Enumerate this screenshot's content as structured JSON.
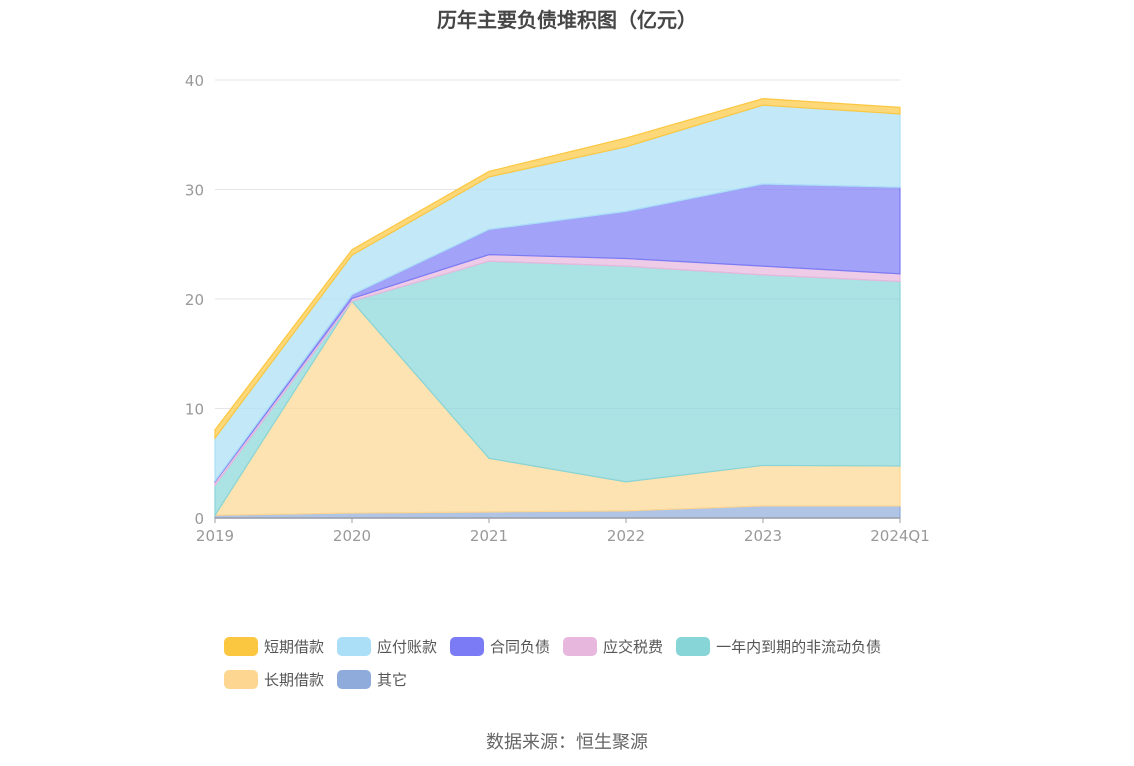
{
  "chart_data": {
    "type": "area",
    "stacked": true,
    "title": "历年主要负债堆积图（亿元）",
    "categories": [
      "2019",
      "2020",
      "2021",
      "2022",
      "2023",
      "2024Q1"
    ],
    "y_ticks": [
      "0",
      "10",
      "20",
      "30",
      "40"
    ],
    "ylim": [
      0,
      40
    ],
    "grid": true,
    "legend_position": "bottom",
    "series": [
      {
        "name": "其它",
        "color": "#8fabdb",
        "values": [
          0.25,
          0.45,
          0.55,
          0.65,
          1.1,
          1.1
        ]
      },
      {
        "name": "长期借款",
        "color": "#fdd791",
        "values": [
          0.0,
          19.35,
          4.9,
          2.65,
          3.7,
          3.65
        ]
      },
      {
        "name": "一年内到期的非流动负债",
        "color": "#88d5d8",
        "values": [
          2.75,
          0.0,
          18.0,
          19.7,
          17.4,
          16.85
        ]
      },
      {
        "name": "应交税费",
        "color": "#e7b7dd",
        "values": [
          0.3,
          0.25,
          0.6,
          0.7,
          0.8,
          0.7
        ]
      },
      {
        "name": "合同负债",
        "color": "#7b7cf5",
        "values": [
          0.1,
          0.35,
          2.3,
          4.3,
          7.5,
          7.9
        ]
      },
      {
        "name": "应付账款",
        "color": "#aadff7",
        "values": [
          3.9,
          3.6,
          4.8,
          5.9,
          7.2,
          6.7
        ]
      },
      {
        "name": "短期借款",
        "color": "#fcc740",
        "values": [
          0.75,
          0.5,
          0.5,
          0.8,
          0.6,
          0.6
        ]
      }
    ],
    "legend_order": [
      "短期借款",
      "应付账款",
      "合同负债",
      "应交税费",
      "一年内到期的非流动负债",
      "长期借款",
      "其它"
    ]
  },
  "source": "数据来源：恒生聚源"
}
